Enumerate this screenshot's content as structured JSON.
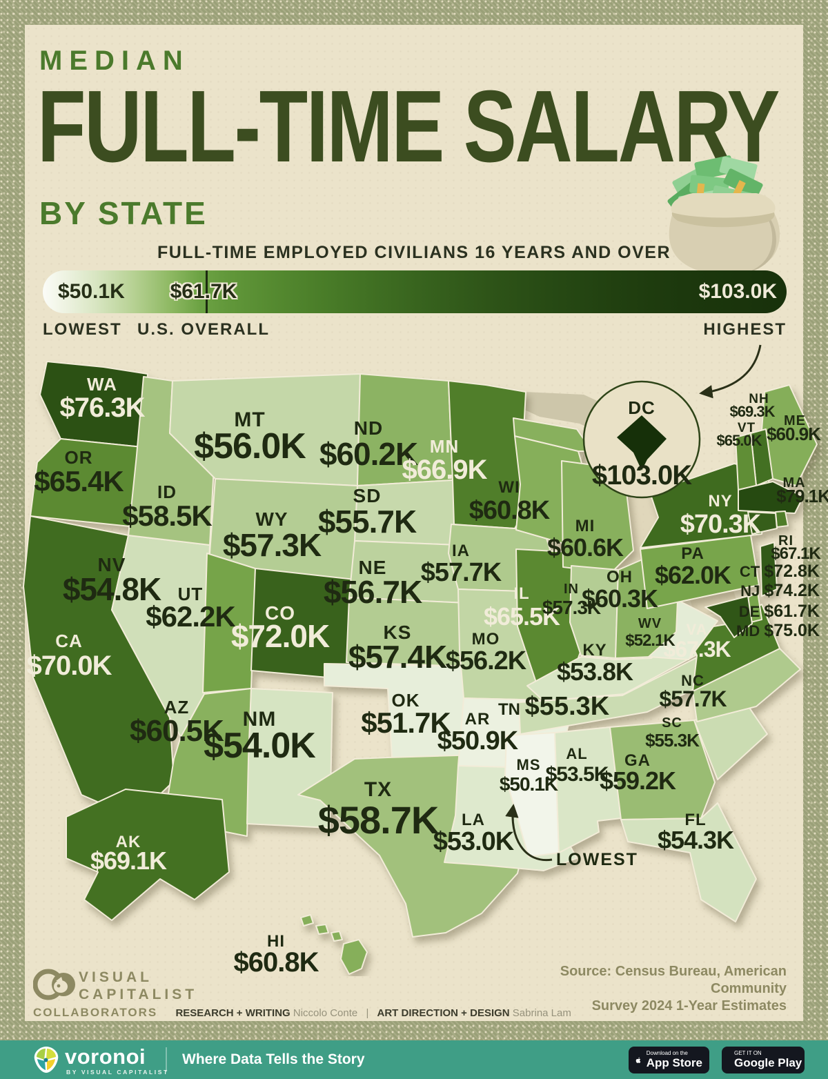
{
  "header": {
    "kicker": "MEDIAN",
    "title": "FULL-TIME SALARY",
    "by": "BY STATE",
    "subtitle": "FULL-TIME EMPLOYED CIVILIANS 16 YEARS AND OVER"
  },
  "legend": {
    "min": "$50.1K",
    "overall": "$61.7K",
    "max": "$103.0K",
    "min_label": "LOWEST",
    "overall_label": "U.S. OVERALL",
    "max_label": "HIGHEST",
    "gradient_low": "#fbfcf7",
    "gradient_mid": "#6da344",
    "gradient_high": "#18310b"
  },
  "map_annotation": {
    "lowest_label": "LOWEST"
  },
  "dc": {
    "abbr": "DC",
    "value": "$103.0K",
    "fill": "#163009"
  },
  "chart_data": {
    "type": "heatmap",
    "title": "Median Full-Time Salary by State",
    "subtitle": "Full-time employed civilians 16 years and over",
    "legend_range": {
      "lowest": 50.1,
      "us_overall": 61.7,
      "highest": 103.0,
      "unit": "K USD"
    },
    "categories": [
      "WA",
      "OR",
      "CA",
      "NV",
      "ID",
      "MT",
      "WY",
      "UT",
      "CO",
      "AZ",
      "NM",
      "ND",
      "SD",
      "NE",
      "KS",
      "OK",
      "TX",
      "MN",
      "IA",
      "MO",
      "AR",
      "LA",
      "WI",
      "IL",
      "MI",
      "IN",
      "OH",
      "KY",
      "TN",
      "MS",
      "AL",
      "GA",
      "FL",
      "SC",
      "NC",
      "VA",
      "WV",
      "PA",
      "NY",
      "ME",
      "NH",
      "VT",
      "MA",
      "RI",
      "CT",
      "NJ",
      "DE",
      "MD",
      "AK",
      "HI",
      "DC"
    ],
    "values": [
      76.3,
      65.4,
      70.0,
      54.8,
      58.5,
      56.0,
      57.3,
      62.2,
      72.0,
      60.5,
      54.0,
      60.2,
      55.7,
      56.7,
      57.4,
      51.7,
      58.7,
      66.9,
      57.7,
      56.2,
      50.9,
      53.0,
      60.8,
      65.5,
      60.6,
      57.3,
      60.3,
      53.8,
      55.3,
      50.1,
      53.5,
      59.2,
      54.3,
      55.3,
      57.7,
      67.3,
      52.1,
      62.0,
      70.3,
      60.9,
      69.3,
      65.0,
      79.1,
      67.1,
      72.8,
      74.2,
      61.7,
      75.0,
      69.1,
      60.8,
      103.0
    ]
  },
  "states": [
    {
      "abbr": "WA",
      "value": "$76.3K",
      "fill": "#2c5114",
      "label": "light"
    },
    {
      "abbr": "OR",
      "value": "$65.4K",
      "fill": "#5c8a32",
      "label": "dark"
    },
    {
      "abbr": "CA",
      "value": "$70.0K",
      "fill": "#406c20",
      "label": "light"
    },
    {
      "abbr": "NV",
      "value": "$54.8K",
      "fill": "#d0dfb9",
      "label": "dark"
    },
    {
      "abbr": "ID",
      "value": "$58.5K",
      "fill": "#a5c380",
      "label": "dark"
    },
    {
      "abbr": "MT",
      "value": "$56.0K",
      "fill": "#c4d7a8",
      "label": "dark"
    },
    {
      "abbr": "WY",
      "value": "$57.3K",
      "fill": "#b4cd94",
      "label": "dark"
    },
    {
      "abbr": "UT",
      "value": "$62.2K",
      "fill": "#76a449",
      "label": "dark"
    },
    {
      "abbr": "CO",
      "value": "$72.0K",
      "fill": "#39621c",
      "label": "light"
    },
    {
      "abbr": "AZ",
      "value": "$60.5K",
      "fill": "#89b15e",
      "label": "dark"
    },
    {
      "abbr": "NM",
      "value": "$54.0K",
      "fill": "#d6e4c2",
      "label": "dark"
    },
    {
      "abbr": "ND",
      "value": "$60.2K",
      "fill": "#8cb363",
      "label": "dark"
    },
    {
      "abbr": "SD",
      "value": "$55.7K",
      "fill": "#c7d9ac",
      "label": "dark"
    },
    {
      "abbr": "NE",
      "value": "$56.7K",
      "fill": "#bcd29e",
      "label": "dark"
    },
    {
      "abbr": "KS",
      "value": "$57.4K",
      "fill": "#b3cc92",
      "label": "dark"
    },
    {
      "abbr": "OK",
      "value": "$51.7K",
      "fill": "#e7eeda",
      "label": "dark"
    },
    {
      "abbr": "TX",
      "value": "$58.7K",
      "fill": "#a2c17c",
      "label": "dark"
    },
    {
      "abbr": "MN",
      "value": "$66.9K",
      "fill": "#507e2a",
      "label": "light"
    },
    {
      "abbr": "IA",
      "value": "$57.7K",
      "fill": "#afca8d",
      "label": "dark"
    },
    {
      "abbr": "MO",
      "value": "$56.2K",
      "fill": "#c2d6a5",
      "label": "dark"
    },
    {
      "abbr": "AR",
      "value": "$50.9K",
      "fill": "#ecf1e0",
      "label": "dark"
    },
    {
      "abbr": "LA",
      "value": "$53.0K",
      "fill": "#dee9cd",
      "label": "dark"
    },
    {
      "abbr": "WI",
      "value": "$60.8K",
      "fill": "#86af5a",
      "label": "dark"
    },
    {
      "abbr": "IL",
      "value": "$65.5K",
      "fill": "#5b8931",
      "label": "light"
    },
    {
      "abbr": "MI",
      "value": "$60.6K",
      "fill": "#88b05d",
      "label": "dark"
    },
    {
      "abbr": "IN",
      "value": "$57.3K",
      "fill": "#b4cd94",
      "label": "dark"
    },
    {
      "abbr": "OH",
      "value": "$60.3K",
      "fill": "#8bb261",
      "label": "dark"
    },
    {
      "abbr": "KY",
      "value": "$53.8K",
      "fill": "#d8e5c4",
      "label": "dark"
    },
    {
      "abbr": "TN",
      "value": "$55.3K",
      "fill": "#cbdcb2",
      "label": "dark"
    },
    {
      "abbr": "MS",
      "value": "$50.1K",
      "fill": "#f2f5ea",
      "label": "dark"
    },
    {
      "abbr": "AL",
      "value": "$53.5K",
      "fill": "#dae6c7",
      "label": "dark"
    },
    {
      "abbr": "GA",
      "value": "$59.2K",
      "fill": "#9abc73",
      "label": "dark"
    },
    {
      "abbr": "FL",
      "value": "$54.3K",
      "fill": "#d4e2bf",
      "label": "dark"
    },
    {
      "abbr": "SC",
      "value": "$55.3K",
      "fill": "#cbdcb2",
      "label": "dark"
    },
    {
      "abbr": "NC",
      "value": "$57.7K",
      "fill": "#afca8d",
      "label": "dark"
    },
    {
      "abbr": "VA",
      "value": "$67.3K",
      "fill": "#4e7c29",
      "label": "light"
    },
    {
      "abbr": "WV",
      "value": "$52.1K",
      "fill": "#e4ecd6",
      "label": "dark"
    },
    {
      "abbr": "PA",
      "value": "$62.0K",
      "fill": "#78a54b",
      "label": "dark"
    },
    {
      "abbr": "NY",
      "value": "$70.3K",
      "fill": "#3f6b1f",
      "label": "light"
    },
    {
      "abbr": "ME",
      "value": "$60.9K",
      "fill": "#85ae59",
      "label": "dark"
    },
    {
      "abbr": "NH",
      "value": "$69.3K",
      "fill": "#437022",
      "label": "dark"
    },
    {
      "abbr": "VT",
      "value": "$65.0K",
      "fill": "#608e36",
      "label": "dark"
    },
    {
      "abbr": "MA",
      "value": "$79.1K",
      "fill": "#264a11",
      "label": "dark"
    },
    {
      "abbr": "RI",
      "value": "$67.1K",
      "fill": "#4f7d29",
      "label": "dark"
    },
    {
      "abbr": "CT",
      "value": "$72.8K",
      "fill": "#365e1a",
      "label": "dark"
    },
    {
      "abbr": "NJ",
      "value": "$74.2K",
      "fill": "#325918",
      "label": "dark"
    },
    {
      "abbr": "DE",
      "value": "$61.7K",
      "fill": "#78a54b",
      "label": "dark"
    },
    {
      "abbr": "MD",
      "value": "$75.0K",
      "fill": "#305617",
      "label": "dark"
    },
    {
      "abbr": "AK",
      "value": "$69.1K",
      "fill": "#447122",
      "label": "light"
    },
    {
      "abbr": "HI",
      "value": "$60.8K",
      "fill": "#86af5a",
      "label": "dark"
    }
  ],
  "footer": {
    "logo_line1": "VISUAL",
    "logo_line2": "CAPITALIST",
    "collaborators_label": "COLLABORATORS",
    "credit1_label": "RESEARCH + WRITING",
    "credit1_name": "Niccolo Conte",
    "separator": "|",
    "credit2_label": "ART DIRECTION + DESIGN",
    "credit2_name": "Sabrina Lam",
    "source_line1": "Source: Census Bureau, American Community",
    "source_line2": "Survey 2024 1-Year Estimates"
  },
  "appbar": {
    "brand": "voronoi",
    "brand_sub": "BY VISUAL CAPITALIST",
    "tagline": "Where Data Tells the Story",
    "accent_color": "#3f9e86",
    "appstore_line1": "Download on the",
    "appstore_line2": "App Store",
    "googleplay_line1": "GET IT ON",
    "googleplay_line2": "Google Play"
  }
}
